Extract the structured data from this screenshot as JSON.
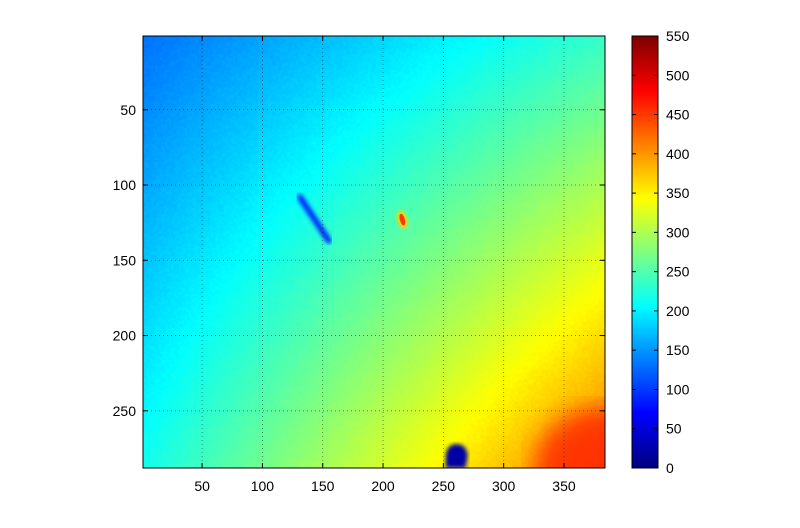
{
  "chart_data": {
    "type": "heatmap",
    "title": "",
    "xlabel": "",
    "ylabel": "",
    "xlim": [
      1,
      384
    ],
    "ylim": [
      1,
      288
    ],
    "y_reversed": true,
    "x_ticks": [
      50,
      100,
      150,
      200,
      250,
      300,
      350
    ],
    "y_ticks": [
      50,
      100,
      150,
      200,
      250
    ],
    "grid": true,
    "grid_style": "dotted",
    "colormap": "jet",
    "colorbar": {
      "position": "right",
      "range": [
        0,
        550
      ],
      "ticks": [
        0,
        50,
        100,
        150,
        200,
        250,
        300,
        350,
        400,
        450,
        500,
        550
      ]
    },
    "field": {
      "description": "smooth gradient rising toward bottom-right",
      "corner_values": {
        "top_left": 130,
        "top_right": 235,
        "bottom_left": 215,
        "bottom_right": 420
      }
    },
    "features": [
      {
        "kind": "streak",
        "x_start": 131,
        "y_start": 108,
        "x_end": 155,
        "y_end": 137,
        "value": 90
      },
      {
        "kind": "spot",
        "x": 216,
        "y": 123,
        "value": 450
      },
      {
        "kind": "blob",
        "x": 261,
        "y": 280,
        "value": 20
      }
    ]
  }
}
